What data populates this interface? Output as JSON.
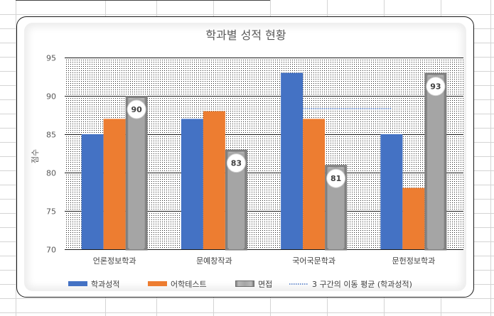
{
  "chart_data": {
    "type": "bar",
    "title": "학과별 성적 현황",
    "ylabel": "점수",
    "xlabel": "",
    "ylim": [
      70,
      95
    ],
    "yticks": [
      70,
      75,
      80,
      85,
      90,
      95
    ],
    "categories": [
      "언론정보학과",
      "문예창작과",
      "국어국문학과",
      "문헌정보학과"
    ],
    "series": [
      {
        "name": "학과성적",
        "values": [
          85,
          87,
          93,
          85
        ],
        "color": "#4472c4"
      },
      {
        "name": "어학테스트",
        "values": [
          87,
          88,
          87,
          78
        ],
        "color": "#ed7d31"
      },
      {
        "name": "면접",
        "values": [
          90,
          83,
          81,
          93
        ],
        "color": "#a5a5a5",
        "data_labels": [
          "90",
          "83",
          "81",
          "93"
        ]
      }
    ],
    "trendline": {
      "name": "3 구간의 이동 평균 (학과성적)",
      "type": "moving-average",
      "period": 3,
      "color": "#4472c4",
      "style": "dotted"
    },
    "grid": true,
    "legend_position": "bottom",
    "plot_fill": "dotted-pattern"
  }
}
